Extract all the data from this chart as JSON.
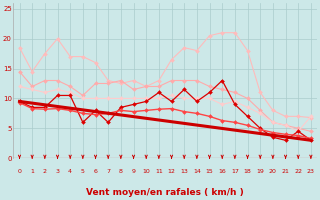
{
  "title": "",
  "xlabel": "Vent moyen/en rafales ( km/h )",
  "ylabel": "",
  "background_color": "#cce8e8",
  "grid_color": "#aacccc",
  "xlim": [
    -0.5,
    23.5
  ],
  "ylim": [
    0,
    26
  ],
  "yticks": [
    0,
    5,
    10,
    15,
    20,
    25
  ],
  "xticks": [
    0,
    1,
    2,
    3,
    4,
    5,
    6,
    7,
    8,
    9,
    10,
    11,
    12,
    13,
    14,
    15,
    16,
    17,
    18,
    19,
    20,
    21,
    22,
    23
  ],
  "lines": [
    {
      "x": [
        0,
        1,
        2,
        3,
        4,
        5,
        6,
        7,
        8,
        9,
        10,
        11,
        12,
        13,
        14,
        15,
        16,
        17,
        18,
        19,
        20,
        21,
        22,
        23
      ],
      "y": [
        18.5,
        14.5,
        17.5,
        20,
        17,
        17,
        16,
        13,
        12.5,
        13,
        12,
        13,
        16.5,
        18.5,
        18,
        20.5,
        21,
        21,
        18,
        11,
        8,
        7,
        7,
        6.8
      ],
      "color": "#ffbbbb",
      "linewidth": 0.8,
      "marker": "D",
      "markersize": 2.0
    },
    {
      "x": [
        0,
        1,
        2,
        3,
        4,
        5,
        6,
        7,
        8,
        9,
        10,
        11,
        12,
        13,
        14,
        15,
        16,
        17,
        18,
        19,
        20,
        21,
        22,
        23
      ],
      "y": [
        14.5,
        12,
        13,
        13,
        12,
        10.5,
        12.5,
        12.5,
        13,
        11.5,
        12,
        12,
        13,
        13,
        13,
        12,
        11.5,
        11,
        10,
        8,
        6,
        5.5,
        5,
        4.5
      ],
      "color": "#ffaaaa",
      "linewidth": 0.8,
      "marker": "D",
      "markersize": 2.0
    },
    {
      "x": [
        0,
        1,
        2,
        3,
        4,
        5,
        6,
        7,
        8,
        9,
        10,
        11,
        12,
        13,
        14,
        15,
        16,
        17,
        18,
        19,
        20,
        21,
        22,
        23
      ],
      "y": [
        12,
        11.5,
        11,
        11.5,
        11,
        10,
        10,
        10,
        10,
        10,
        10,
        10,
        10.5,
        10,
        10,
        10,
        9,
        9.5,
        8.5,
        7.5,
        6,
        5.5,
        4.5,
        7
      ],
      "color": "#ffcccc",
      "linewidth": 0.8,
      "marker": "D",
      "markersize": 2.0
    },
    {
      "x": [
        0,
        1,
        2,
        3,
        4,
        5,
        6,
        7,
        8,
        9,
        10,
        11,
        12,
        13,
        14,
        15,
        16,
        17,
        18,
        19,
        20,
        21,
        22,
        23
      ],
      "y": [
        9.5,
        8.5,
        8.5,
        10.5,
        10.5,
        6.0,
        8.0,
        6.0,
        8.5,
        9,
        9.5,
        11,
        9.5,
        11.5,
        9.5,
        11,
        13,
        9,
        7,
        5,
        3.5,
        3,
        4.5,
        3
      ],
      "color": "#dd0000",
      "linewidth": 0.9,
      "marker": "D",
      "markersize": 2.0
    },
    {
      "x": [
        0,
        1,
        2,
        3,
        4,
        5,
        6,
        7,
        8,
        9,
        10,
        11,
        12,
        13,
        14,
        15,
        16,
        17,
        18,
        19,
        20,
        21,
        22,
        23
      ],
      "y": [
        9.3,
        8.3,
        8.2,
        8.3,
        8.0,
        7.5,
        7.3,
        7.5,
        8.0,
        7.8,
        8.0,
        8.2,
        8.3,
        7.8,
        7.5,
        7.0,
        6.3,
        6.0,
        5.5,
        4.8,
        4.3,
        4.0,
        3.8,
        3.3
      ],
      "color": "#ff4444",
      "linewidth": 1.0,
      "marker": "D",
      "markersize": 2.0
    },
    {
      "x": [
        0,
        23
      ],
      "y": [
        9.5,
        3.0
      ],
      "color": "#cc0000",
      "linewidth": 2.2,
      "marker": null,
      "markersize": 0
    }
  ],
  "arrow_color": "#cc0000",
  "xlabel_color": "#cc0000",
  "xlabel_fontsize": 6.5
}
